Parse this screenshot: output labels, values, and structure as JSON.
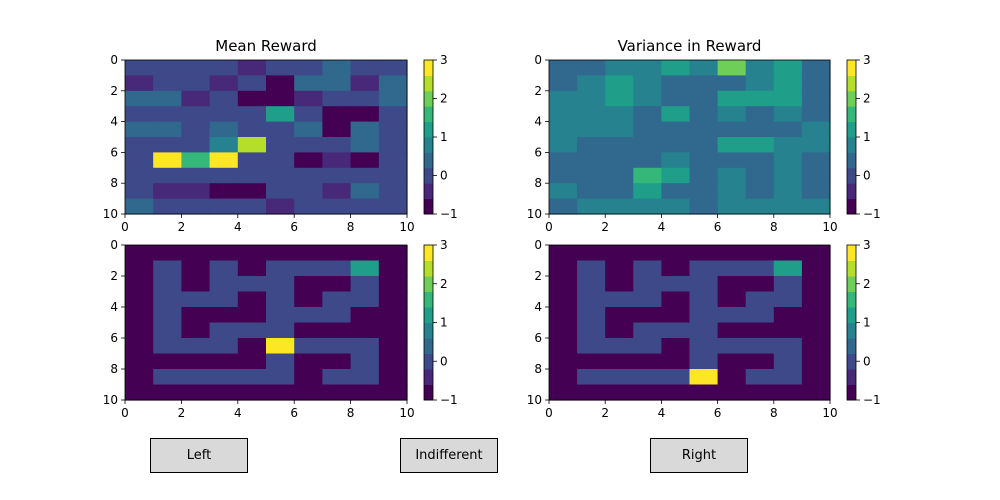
{
  "colormap": [
    "#440154",
    "#482878",
    "#3e4989",
    "#31688e",
    "#26828e",
    "#1f9e89",
    "#35b779",
    "#6ece58",
    "#b5de2b",
    "#fde725"
  ],
  "chart_data": [
    {
      "type": "heatmap",
      "title": "Mean Reward",
      "xticks": [
        "0",
        "2",
        "4",
        "6",
        "8",
        "10"
      ],
      "yticks": [
        "0",
        "2",
        "4",
        "6",
        "8",
        "10"
      ],
      "xlim": [
        0,
        10
      ],
      "ylim": [
        10,
        0
      ],
      "colorbar": {
        "min": -1,
        "max": 3,
        "ticks": [
          "−1",
          "0",
          "1",
          "2",
          "3"
        ]
      },
      "values": [
        [
          0.0,
          0.0,
          0.0,
          0.0,
          -0.5,
          0.0,
          0.0,
          0.3,
          0.0,
          0.0
        ],
        [
          -0.5,
          -0.3,
          -0.3,
          -0.5,
          -0.3,
          -0.9,
          0.3,
          0.2,
          -0.5,
          0.2
        ],
        [
          0.3,
          0.5,
          -0.5,
          0.0,
          -0.9,
          -0.9,
          -0.5,
          0.0,
          -0.3,
          0.3
        ],
        [
          0.0,
          0.0,
          0.0,
          -0.3,
          0.0,
          1.3,
          0.0,
          -0.9,
          -0.9,
          0.0
        ],
        [
          0.3,
          0.5,
          0.0,
          0.3,
          0.0,
          0.0,
          0.5,
          -0.8,
          0.5,
          -0.3
        ],
        [
          0.0,
          0.0,
          0.0,
          0.7,
          2.6,
          0.0,
          0.0,
          0.0,
          0.3,
          0.0
        ],
        [
          0.0,
          3.0,
          1.5,
          3.0,
          0.0,
          0.0,
          -0.9,
          -0.5,
          -0.9,
          0.0
        ],
        [
          0.0,
          0.0,
          -0.3,
          -0.3,
          -0.3,
          -0.3,
          -0.3,
          -0.3,
          0.0,
          0.0
        ],
        [
          0.0,
          -0.5,
          -0.7,
          -0.9,
          -0.9,
          -0.3,
          0.0,
          -0.5,
          0.3,
          0.0
        ],
        [
          0.5,
          0.0,
          0.0,
          0.0,
          -0.3,
          -0.5,
          0.0,
          0.0,
          -0.3,
          -0.3
        ]
      ]
    },
    {
      "type": "heatmap",
      "title": "Variance in Reward",
      "xticks": [
        "0",
        "2",
        "4",
        "6",
        "8",
        "10"
      ],
      "yticks": [
        "0",
        "2",
        "4",
        "6",
        "8",
        "10"
      ],
      "xlim": [
        0,
        10
      ],
      "ylim": [
        10,
        0
      ],
      "colorbar": {
        "min": -1,
        "max": 3,
        "ticks": [
          "−1",
          "0",
          "1",
          "2",
          "3"
        ]
      },
      "values": [
        [
          0.5,
          0.3,
          0.6,
          0.6,
          1.1,
          0.8,
          2.0,
          0.7,
          1.3,
          0.3
        ],
        [
          0.5,
          0.6,
          1.3,
          0.6,
          0.5,
          0.5,
          0.5,
          0.7,
          1.3,
          0.3
        ],
        [
          0.6,
          0.6,
          1.4,
          0.7,
          0.5,
          0.5,
          1.0,
          1.0,
          1.0,
          0.5
        ],
        [
          0.6,
          0.6,
          0.7,
          0.5,
          1.2,
          0.3,
          0.6,
          0.3,
          0.7,
          0.5
        ],
        [
          0.9,
          0.7,
          0.7,
          0.5,
          0.3,
          0.3,
          0.3,
          0.3,
          0.3,
          0.6
        ],
        [
          0.6,
          0.5,
          0.5,
          0.3,
          0.3,
          0.3,
          1.1,
          1.1,
          0.6,
          0.6
        ],
        [
          0.5,
          0.3,
          0.3,
          0.3,
          0.7,
          0.3,
          0.5,
          0.3,
          0.6,
          0.5
        ],
        [
          0.3,
          0.5,
          0.5,
          1.5,
          1.0,
          0.3,
          0.6,
          0.3,
          0.9,
          0.5
        ],
        [
          0.7,
          0.5,
          0.5,
          1.1,
          0.3,
          0.3,
          0.7,
          0.3,
          0.7,
          0.3
        ],
        [
          0.5,
          0.9,
          0.9,
          0.7,
          0.6,
          0.5,
          0.6,
          0.7,
          0.9,
          0.7
        ]
      ]
    },
    {
      "type": "heatmap",
      "title": "",
      "xticks": [
        "0",
        "2",
        "4",
        "6",
        "8",
        "10"
      ],
      "yticks": [
        "0",
        "2",
        "4",
        "6",
        "8",
        "10"
      ],
      "xlim": [
        0,
        10
      ],
      "ylim": [
        10,
        0
      ],
      "colorbar": {
        "min": -1,
        "max": 3,
        "ticks": [
          "−1",
          "0",
          "1",
          "2",
          "3"
        ]
      },
      "values": [
        [
          -1,
          -1,
          -1,
          -1,
          -1,
          -1,
          -1,
          -1,
          -1,
          -1
        ],
        [
          -1,
          0,
          -1,
          0,
          -1,
          0,
          0,
          0,
          1,
          -1
        ],
        [
          -1,
          0,
          -1,
          0,
          0,
          0,
          -1,
          -1,
          0,
          -1
        ],
        [
          -1,
          0,
          0,
          0,
          -1,
          0,
          -1,
          0,
          0,
          -1
        ],
        [
          -1,
          0,
          -1,
          -1,
          -1,
          0,
          0,
          0,
          -1,
          -1
        ],
        [
          -1,
          0,
          -1,
          0,
          0,
          0,
          -1,
          -1,
          -1,
          -1
        ],
        [
          -1,
          0,
          0,
          0,
          -1,
          3,
          0,
          0,
          0,
          -1
        ],
        [
          -1,
          -1,
          -1,
          -1,
          -1,
          0,
          -1,
          -1,
          0,
          -1
        ],
        [
          -1,
          0,
          0,
          0,
          0,
          0,
          -1,
          0,
          0,
          -1
        ],
        [
          -1,
          -1,
          -1,
          -1,
          -1,
          -1,
          -1,
          -1,
          -1,
          -1
        ]
      ]
    },
    {
      "type": "heatmap",
      "title": "",
      "xticks": [
        "0",
        "2",
        "4",
        "6",
        "8",
        "10"
      ],
      "yticks": [
        "0",
        "2",
        "4",
        "6",
        "8",
        "10"
      ],
      "xlim": [
        0,
        10
      ],
      "ylim": [
        10,
        0
      ],
      "colorbar": {
        "min": -1,
        "max": 3,
        "ticks": [
          "−1",
          "0",
          "1",
          "2",
          "3"
        ]
      },
      "values": [
        [
          -1,
          -1,
          -1,
          -1,
          -1,
          -1,
          -1,
          -1,
          -1,
          -1
        ],
        [
          -1,
          0,
          -1,
          0,
          -1,
          0,
          0,
          0,
          1,
          -1
        ],
        [
          -1,
          0,
          -1,
          0,
          0,
          0,
          -1,
          -1,
          0,
          -1
        ],
        [
          -1,
          0,
          0,
          0,
          -1,
          0,
          -1,
          0,
          0,
          -1
        ],
        [
          -1,
          0,
          -1,
          -1,
          -1,
          0,
          0,
          0,
          -1,
          -1
        ],
        [
          -1,
          0,
          -1,
          0,
          0,
          0,
          -1,
          -1,
          -1,
          -1
        ],
        [
          -1,
          0,
          0,
          0,
          -1,
          0,
          0,
          0,
          0,
          -1
        ],
        [
          -1,
          -1,
          -1,
          -1,
          -1,
          0,
          -1,
          -1,
          0,
          -1
        ],
        [
          -1,
          0,
          0,
          0,
          0,
          3,
          -1,
          0,
          0,
          -1
        ],
        [
          -1,
          -1,
          -1,
          -1,
          -1,
          -1,
          -1,
          -1,
          -1,
          -1
        ]
      ]
    }
  ],
  "buttons": {
    "left": "Left",
    "indifferent": "Indifferent",
    "right": "Right"
  }
}
